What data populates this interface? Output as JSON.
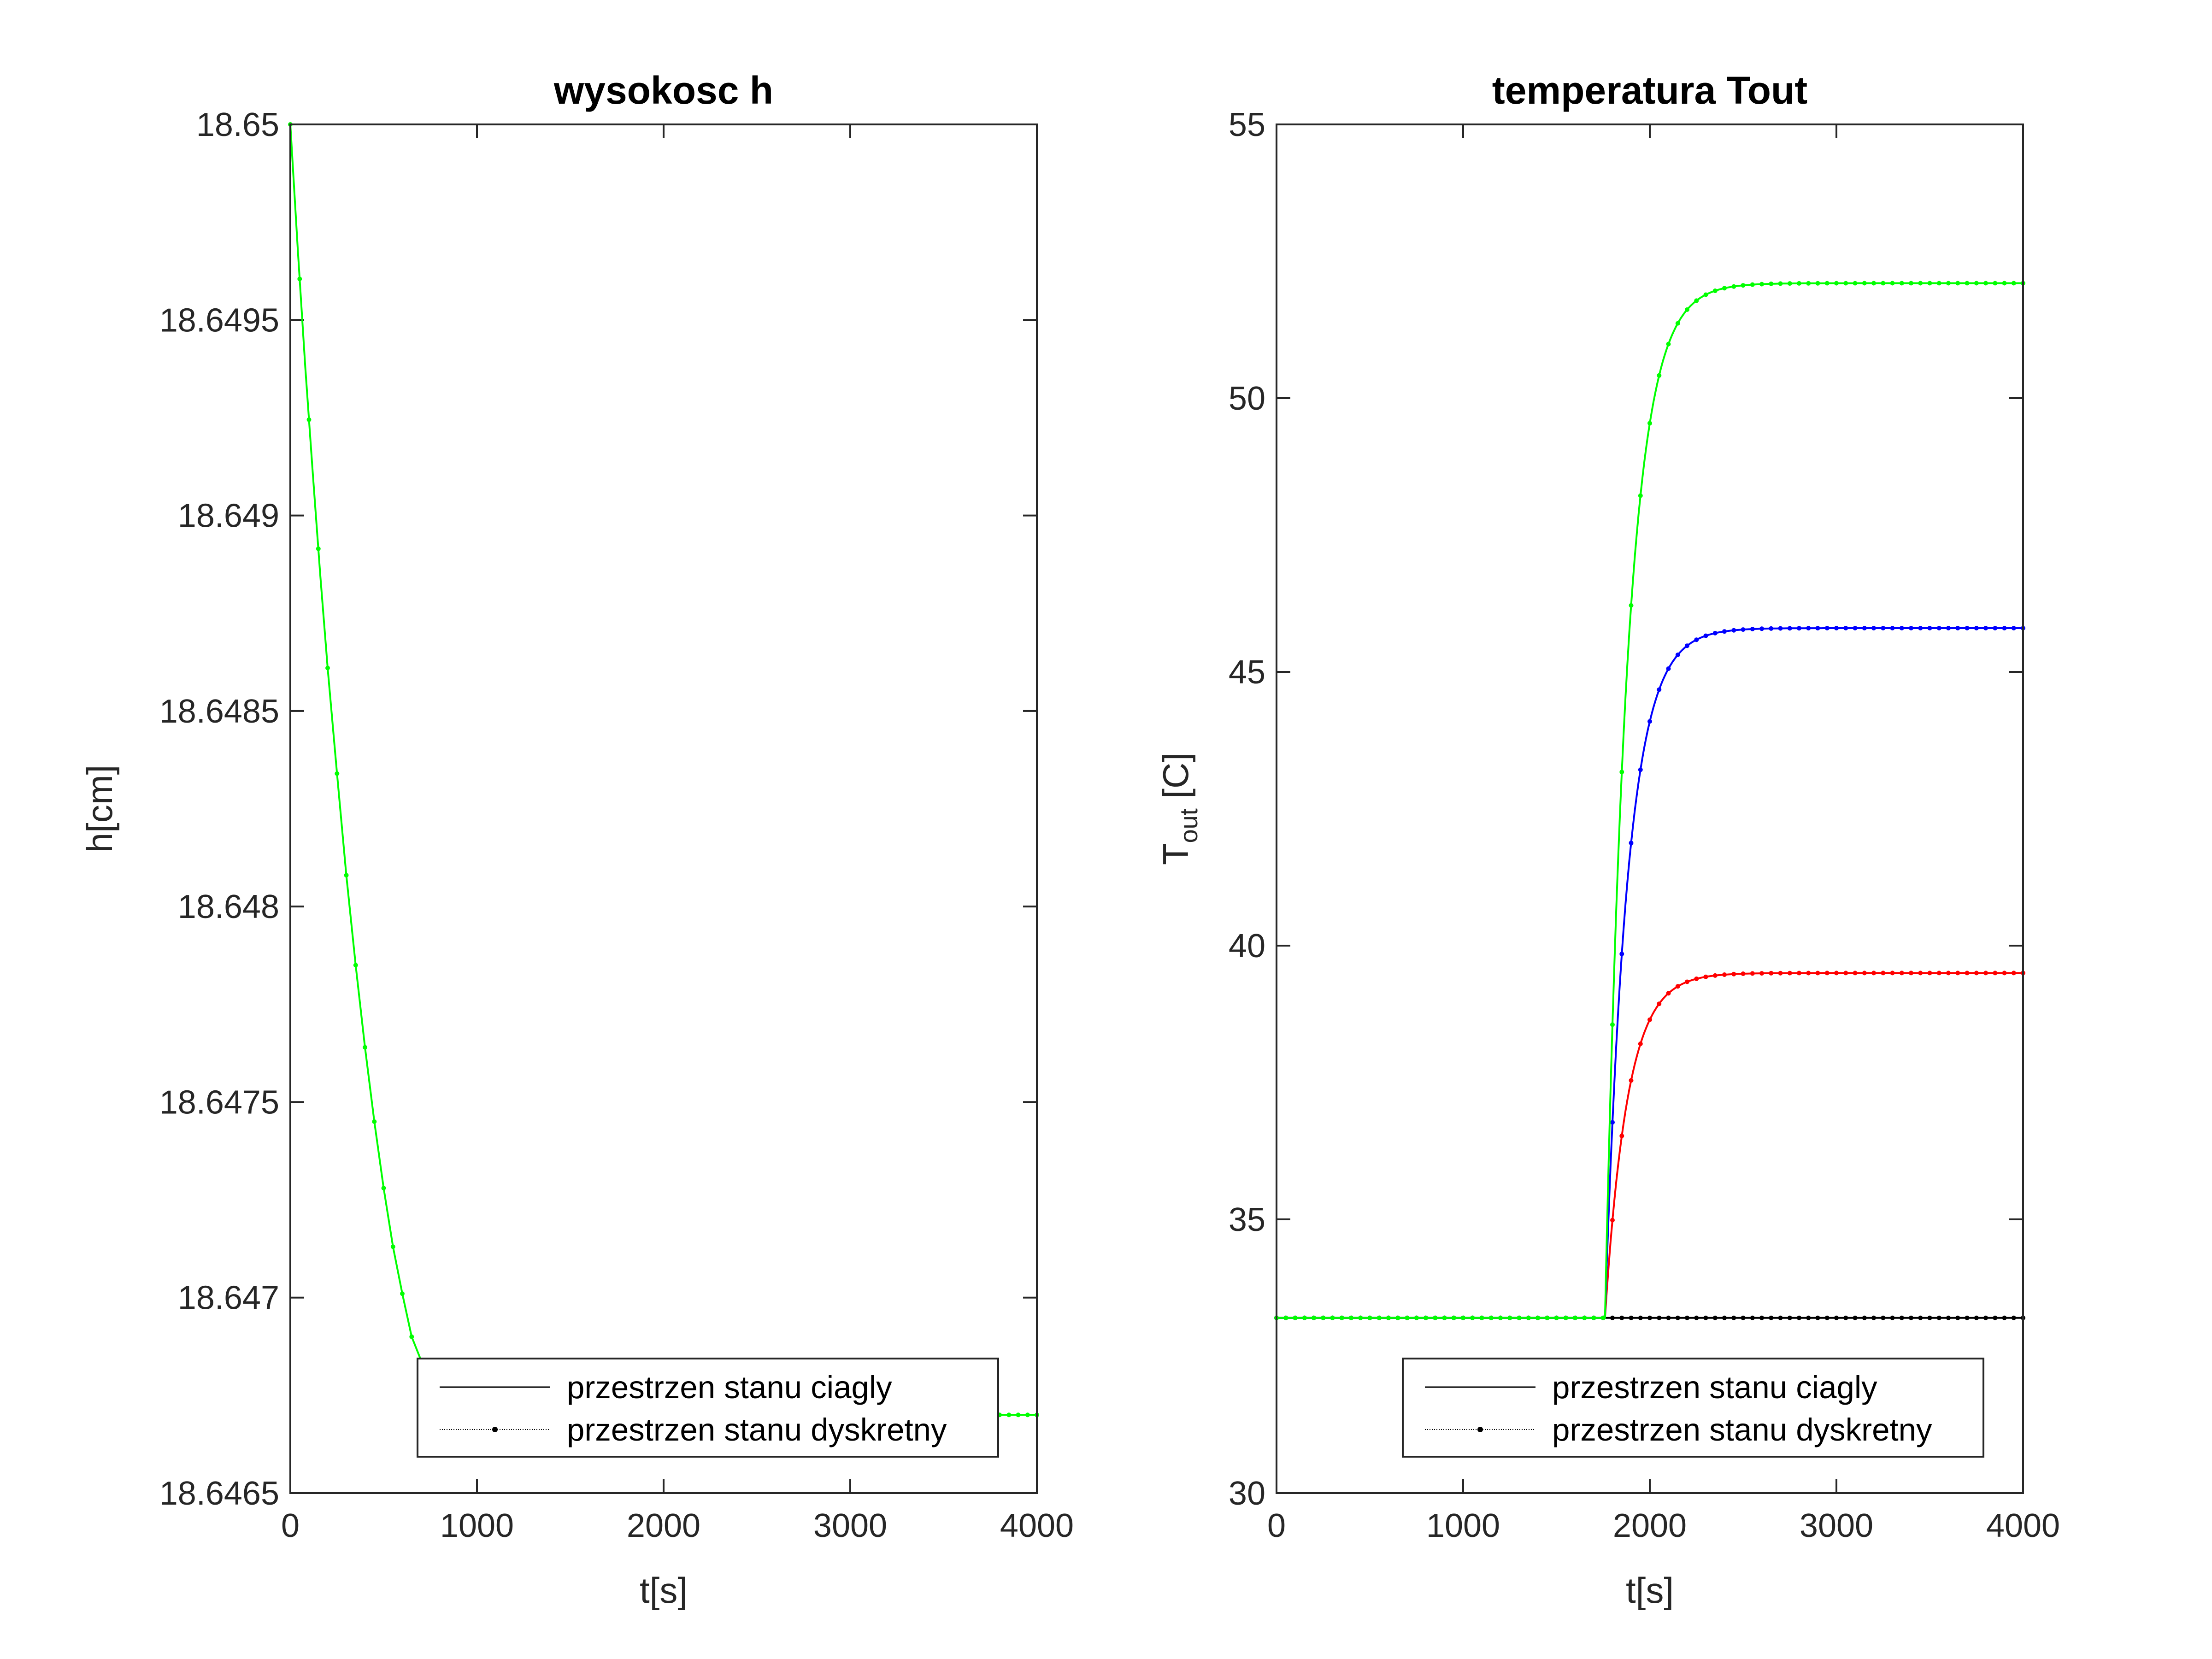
{
  "chart_data": [
    {
      "type": "line",
      "title": "wysokosc h",
      "xlabel": "t[s]",
      "ylabel": "h[cm]",
      "xlim": [
        0,
        4000
      ],
      "ylim": [
        18.6465,
        18.65
      ],
      "xticks": [
        "0",
        "1000",
        "2000",
        "3000",
        "4000"
      ],
      "yticks": [
        "18.6465",
        "18.647",
        "18.6475",
        "18.648",
        "18.6485",
        "18.649",
        "18.6495",
        "18.65"
      ],
      "grid": false,
      "legend": {
        "location": "bottom-right",
        "entries": [
          "przestrzen stanu ciagly",
          "przestrzen stanu dyskretny"
        ]
      },
      "series": [
        {
          "color": "#00ff00",
          "x": [
            0,
            40,
            80,
            120,
            160,
            200,
            250,
            300,
            350,
            400,
            450,
            500,
            550,
            600,
            650,
            700,
            800,
            900,
            1000,
            1200,
            1500,
            2000,
            2500,
            3000,
            3500,
            4000
          ],
          "y": [
            18.65,
            18.64968,
            18.64938,
            18.64911,
            18.64885,
            18.64861,
            18.64834,
            18.64808,
            18.64785,
            18.64764,
            18.64745,
            18.64728,
            18.64713,
            18.64701,
            18.6469,
            18.64684,
            18.6468,
            18.64677,
            18.64675,
            18.64673,
            18.64671,
            18.6467,
            18.6467,
            18.6467,
            18.6467,
            18.6467
          ]
        }
      ]
    },
    {
      "type": "line",
      "title": "temperatura Tout",
      "xlabel": "t[s]",
      "ylabel": "T",
      "ylabel_sub": "out",
      "ylabel_suffix": " [C]",
      "xlim": [
        0,
        4000
      ],
      "ylim": [
        30,
        55
      ],
      "xticks": [
        "0",
        "1000",
        "2000",
        "3000",
        "4000"
      ],
      "yticks": [
        "30",
        "35",
        "40",
        "45",
        "50",
        "55"
      ],
      "grid": false,
      "legend": {
        "location": "bottom-right",
        "entries": [
          "przestrzen stanu ciagly",
          "przestrzen stanu dyskretny"
        ]
      },
      "series": [
        {
          "color": "#000000",
          "initial": 33.2,
          "final": 33.2,
          "step_time": 1760
        },
        {
          "color": "#ff0000",
          "initial": 33.2,
          "final": 39.5,
          "step_time": 1760
        },
        {
          "color": "#0000ff",
          "initial": 33.2,
          "final": 45.8,
          "step_time": 1760
        },
        {
          "color": "#00ff00",
          "initial": 33.2,
          "final": 52.1,
          "step_time": 1760
        }
      ]
    }
  ]
}
